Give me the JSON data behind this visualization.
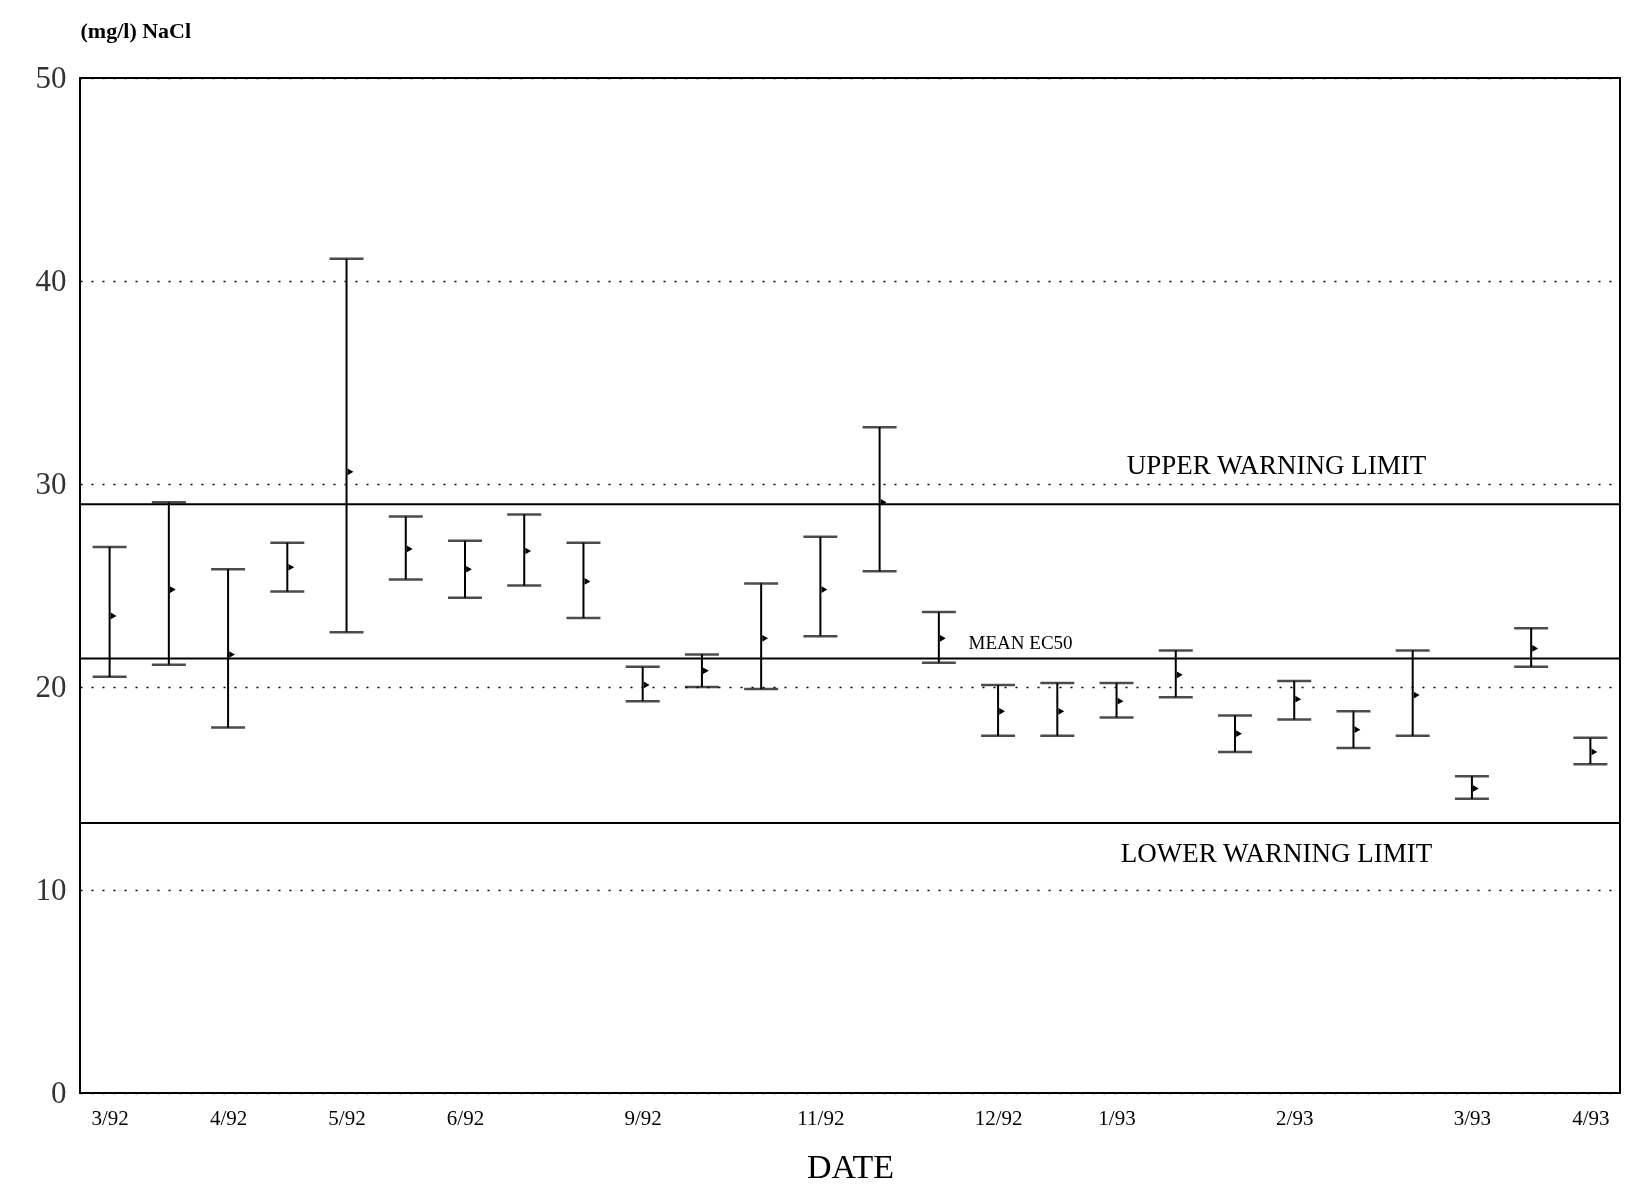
{
  "chart_data": {
    "type": "scatter",
    "ylabel": "(mg/l) NaCl",
    "xlabel": "DATE",
    "categories": [
      "3/92",
      null,
      "4/92",
      null,
      "5/92",
      null,
      "6/92",
      null,
      null,
      "9/92",
      null,
      null,
      "11/92",
      null,
      null,
      "12/92",
      null,
      "1/93",
      null,
      null,
      "2/93",
      null,
      null,
      "3/93",
      null,
      "4/93"
    ],
    "values": [
      23.5,
      24.8,
      21.6,
      25.9,
      30.6,
      26.8,
      25.8,
      26.7,
      25.2,
      20.1,
      20.8,
      22.4,
      24.8,
      29.1,
      22.4,
      18.8,
      18.8,
      19.3,
      20.6,
      17.7,
      19.4,
      17.9,
      19.6,
      15.0,
      21.9,
      16.8
    ],
    "errors": [
      [
        20.5,
        26.9
      ],
      [
        21.1,
        29.1
      ],
      [
        18.0,
        25.8
      ],
      [
        24.7,
        27.1
      ],
      [
        22.7,
        41.1
      ],
      [
        25.3,
        28.4
      ],
      [
        24.4,
        27.2
      ],
      [
        25.0,
        28.5
      ],
      [
        23.4,
        27.1
      ],
      [
        19.3,
        21.0
      ],
      [
        20.0,
        21.6
      ],
      [
        19.9,
        25.1
      ],
      [
        22.5,
        27.4
      ],
      [
        25.7,
        32.8
      ],
      [
        21.2,
        23.7
      ],
      [
        17.6,
        20.1
      ],
      [
        17.6,
        20.2
      ],
      [
        18.5,
        20.2
      ],
      [
        19.5,
        21.8
      ],
      [
        16.8,
        18.6
      ],
      [
        18.4,
        20.3
      ],
      [
        17.0,
        18.8
      ],
      [
        17.6,
        21.8
      ],
      [
        14.5,
        15.6
      ],
      [
        21.0,
        22.9
      ],
      [
        16.2,
        17.5
      ]
    ],
    "marker": "triangle",
    "ylim": [
      0,
      50
    ],
    "yticks": [
      0,
      10,
      20,
      30,
      40,
      50
    ],
    "grid": "y",
    "ref_lines": [
      {
        "axis": "y",
        "value": 29.0,
        "label": "UPPER WARNING LIMIT"
      },
      {
        "axis": "y",
        "value": 21.4,
        "label": "MEAN EC50"
      },
      {
        "axis": "y",
        "value": 13.3,
        "label": "LOWER WARNING LIMIT"
      }
    ]
  }
}
